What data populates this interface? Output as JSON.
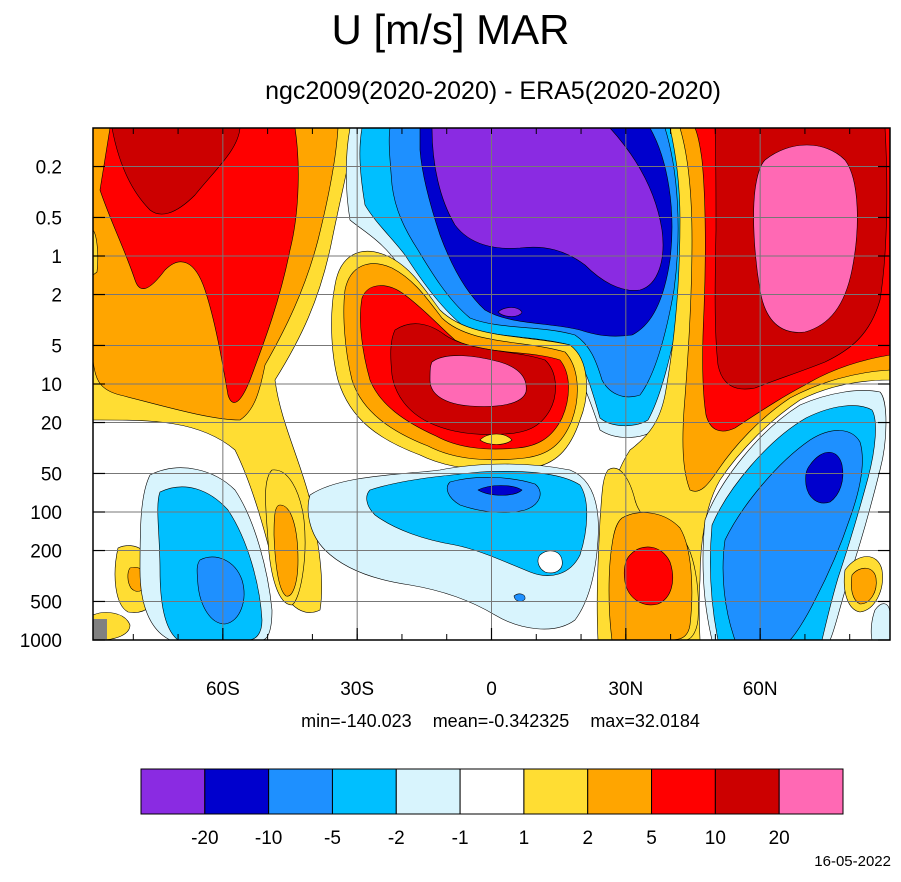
{
  "title": "U [m/s] MAR",
  "subtitle": "ngc2009(2020-2020) - ERA5(2020-2020)",
  "stats": {
    "min": "min=-140.023",
    "mean": "mean=-0.342325",
    "max": "max=32.0184"
  },
  "date": "16-05-2022",
  "chart_data": {
    "type": "heatmap",
    "title": "U [m/s] MAR",
    "subtitle": "ngc2009(2020-2020) - ERA5(2020-2020)",
    "xlabel": "",
    "ylabel": "",
    "x_ticks": [
      "60S",
      "30S",
      "0",
      "30N",
      "60N"
    ],
    "x_tick_values": [
      -60,
      -30,
      0,
      30,
      60
    ],
    "xlim": [
      -89,
      89
    ],
    "y_ticks": [
      "0.2",
      "0.5",
      "1",
      "2",
      "5",
      "10",
      "20",
      "50",
      "100",
      "200",
      "500",
      "1000"
    ],
    "y_tick_values": [
      0.2,
      0.5,
      1,
      2,
      5,
      10,
      20,
      50,
      100,
      200,
      500,
      1000
    ],
    "ylim": [
      0.1,
      1000
    ],
    "y_scale": "log",
    "y_reversed": true,
    "grid": true,
    "colorbar": {
      "labels": [
        "-20",
        "-10",
        "-5",
        "-2",
        "-1",
        "1",
        "2",
        "5",
        "10",
        "20"
      ],
      "colors": [
        "#8a2be2",
        "#0000cd",
        "#1e90ff",
        "#00bfff",
        "#d8f4fd",
        "#ffffff",
        "#ffdd33",
        "#ffa500",
        "#ff0000",
        "#cc0000",
        "#ff69b4"
      ]
    },
    "regions": [
      {
        "level": 5,
        "color": "#ffa500",
        "lat": -78,
        "p": 0.3
      },
      {
        "level": 10,
        "color": "#ff0000",
        "lat": -68,
        "p": 1
      },
      {
        "level": 20,
        "color": "#cc0000",
        "lat": -78,
        "p": 0.2
      },
      {
        "level": -20,
        "color": "#8a2be2",
        "lat": 10,
        "p": 0.5
      },
      {
        "level": -10,
        "color": "#0000cd",
        "lat": 10,
        "p": 2
      },
      {
        "level": 20,
        "color": "#ff69b4",
        "lat": 3,
        "p": 10
      },
      {
        "level": 20,
        "color": "#ff69b4",
        "lat": 65,
        "p": 1
      },
      {
        "level": -10,
        "color": "#0000cd",
        "lat": 72,
        "p": 60
      },
      {
        "level": -10,
        "color": "#0000cd",
        "lat": 0,
        "p": 80
      },
      {
        "level": 10,
        "color": "#ff0000",
        "lat": 35,
        "p": 300
      },
      {
        "level": -5,
        "color": "#1e90ff",
        "lat": -58,
        "p": 300
      }
    ]
  }
}
